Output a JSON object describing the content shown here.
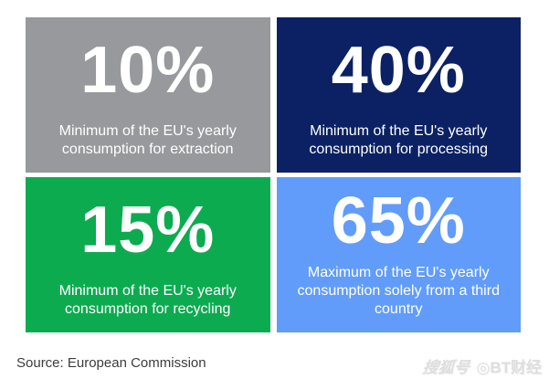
{
  "chart_data": {
    "type": "table",
    "title": "",
    "categories": [
      "Minimum of the EU's yearly consumption for extraction",
      "Minimum of the EU's yearly consumption for processing",
      "Minimum of the EU's yearly consumption for recycling",
      "Maximum of the EU's yearly consumption solely from a third country"
    ],
    "values": [
      10,
      40,
      15,
      65
    ],
    "units": "%",
    "tile_colors": [
      "#97999C",
      "#0B2163",
      "#0CAB50",
      "#619CFA"
    ],
    "text_color": "#ffffff",
    "source": "European Commission"
  },
  "cards": [
    {
      "value": "10%",
      "caption": "Minimum of the EU's yearly consumption for extraction",
      "color": "#97999C"
    },
    {
      "value": "40%",
      "caption": "Minimum of the EU's yearly consumption for processing",
      "color": "#0B2163"
    },
    {
      "value": "15%",
      "caption": "Minimum of the EU's yearly consumption for recycling",
      "color": "#0CAB50"
    },
    {
      "value": "65%",
      "caption": "Maximum of the EU's yearly consumption solely from a third country",
      "color": "#619CFA"
    }
  ],
  "footer": {
    "source_label": "Source: European Commission"
  },
  "watermark": {
    "platform": "搜狐号",
    "logo_glyph": "◎",
    "account": "BT财经"
  }
}
